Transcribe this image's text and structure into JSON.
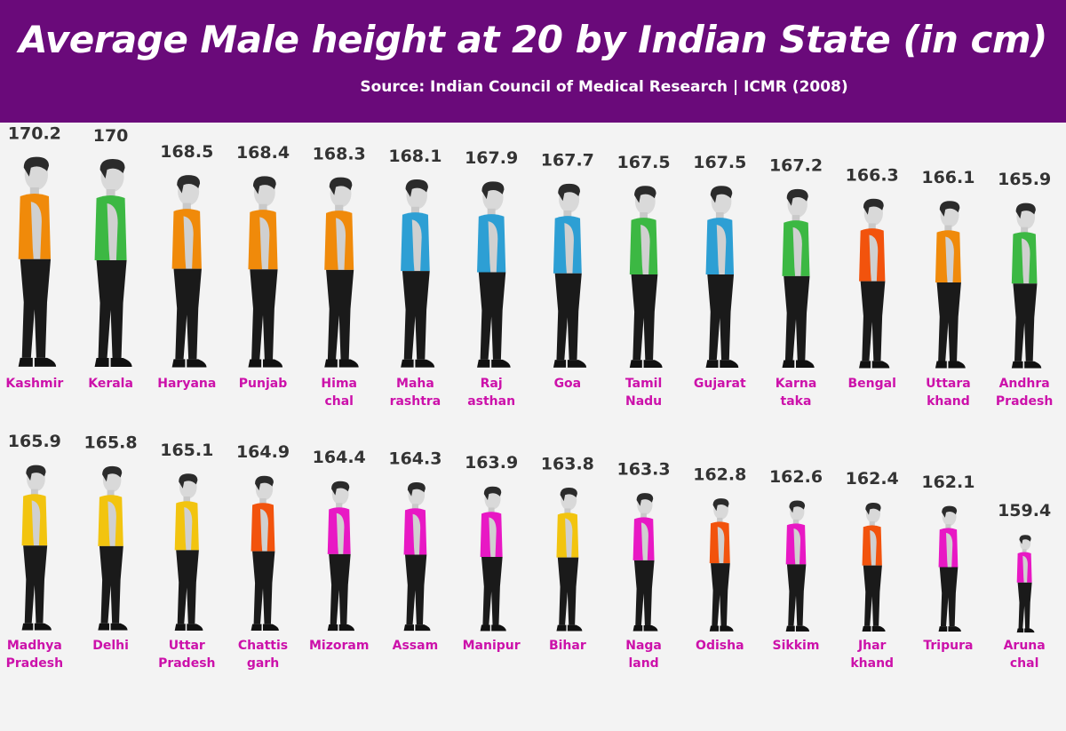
{
  "title": "Average Male height at 20 by Indian State (in cm)",
  "subtitle": "Source: Indian Council of Medical Research | ICMR  (2008)",
  "colors": {
    "header_bg": "#6a0a7a",
    "orange": "#f08a0a",
    "green": "#3cb843",
    "blue": "#2d9fd4",
    "red": "#f2530d",
    "yellow": "#f2c40f",
    "magenta": "#e818c4",
    "label": "#cc11aa",
    "value": "#333333"
  },
  "chart_data": {
    "type": "bar",
    "title": "Average Male height at 20 by Indian State (in cm)",
    "unit": "cm",
    "categories": [
      {
        "label": [
          "Kashmir"
        ],
        "value": 170.2,
        "color": "orange"
      },
      {
        "label": [
          "Kerala"
        ],
        "value": 170,
        "color": "green"
      },
      {
        "label": [
          "Haryana"
        ],
        "value": 168.5,
        "color": "orange"
      },
      {
        "label": [
          "Punjab"
        ],
        "value": 168.4,
        "color": "orange"
      },
      {
        "label": [
          "Hima",
          "chal"
        ],
        "value": 168.3,
        "color": "orange"
      },
      {
        "label": [
          "Maha",
          "rashtra"
        ],
        "value": 168.1,
        "color": "blue"
      },
      {
        "label": [
          "Raj",
          "asthan"
        ],
        "value": 167.9,
        "color": "blue"
      },
      {
        "label": [
          "Goa"
        ],
        "value": 167.7,
        "color": "blue"
      },
      {
        "label": [
          "Tamil",
          "Nadu"
        ],
        "value": 167.5,
        "color": "green"
      },
      {
        "label": [
          "Gujarat"
        ],
        "value": 167.5,
        "color": "blue"
      },
      {
        "label": [
          "Karna",
          "taka"
        ],
        "value": 167.2,
        "color": "green"
      },
      {
        "label": [
          "Bengal"
        ],
        "value": 166.3,
        "color": "red"
      },
      {
        "label": [
          "Uttara",
          "khand"
        ],
        "value": 166.1,
        "color": "orange"
      },
      {
        "label": [
          "Andhra",
          "Pradesh"
        ],
        "value": 165.9,
        "color": "green"
      },
      {
        "label": [
          "Madhya",
          "Pradesh"
        ],
        "value": 165.9,
        "color": "yellow"
      },
      {
        "label": [
          "Delhi"
        ],
        "value": 165.8,
        "color": "yellow"
      },
      {
        "label": [
          "Uttar",
          "Pradesh"
        ],
        "value": 165.1,
        "color": "yellow"
      },
      {
        "label": [
          "Chattis",
          "garh"
        ],
        "value": 164.9,
        "color": "red"
      },
      {
        "label": [
          "Mizoram"
        ],
        "value": 164.4,
        "color": "magenta"
      },
      {
        "label": [
          "Assam"
        ],
        "value": 164.3,
        "color": "magenta"
      },
      {
        "label": [
          "Manipur"
        ],
        "value": 163.9,
        "color": "magenta"
      },
      {
        "label": [
          "Bihar"
        ],
        "value": 163.8,
        "color": "yellow"
      },
      {
        "label": [
          "Naga",
          "land"
        ],
        "value": 163.3,
        "color": "magenta"
      },
      {
        "label": [
          "Odisha"
        ],
        "value": 162.8,
        "color": "red"
      },
      {
        "label": [
          "Sikkim"
        ],
        "value": 162.6,
        "color": "magenta"
      },
      {
        "label": [
          "Jhar",
          "khand"
        ],
        "value": 162.4,
        "color": "red"
      },
      {
        "label": [
          "Tripura"
        ],
        "value": 162.1,
        "color": "magenta"
      },
      {
        "label": [
          "Aruna",
          "chal"
        ],
        "value": 159.4,
        "color": "magenta"
      }
    ]
  }
}
